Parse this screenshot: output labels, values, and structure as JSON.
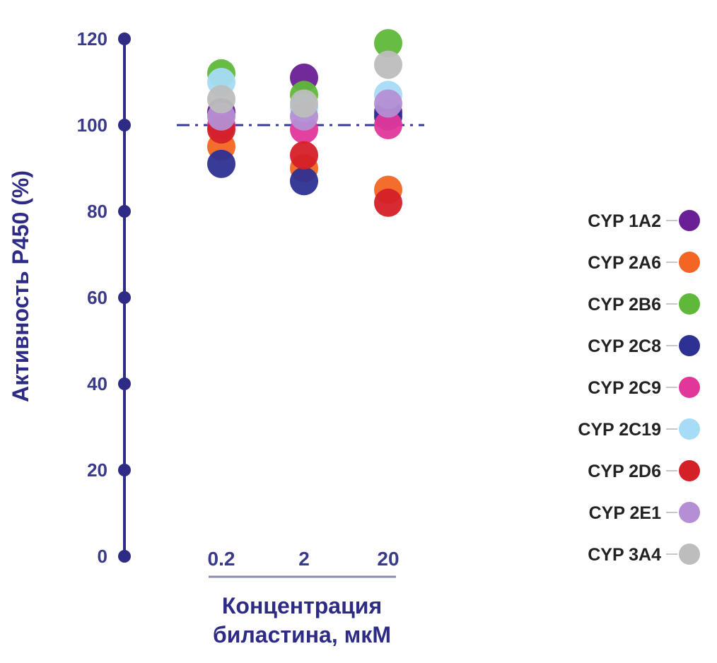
{
  "chart_data": {
    "type": "scatter",
    "ylabel": "Активность P450 (%)",
    "xlabel_lines": [
      "Концентрация",
      "биластина, мкМ"
    ],
    "ylim": [
      0,
      120
    ],
    "yticks": [
      "0",
      "20",
      "40",
      "60",
      "80",
      "100",
      "120"
    ],
    "categories": [
      "0.2",
      "2",
      "20"
    ],
    "reference_line": 100,
    "series": [
      {
        "name": "CYP 1A2",
        "color": "#6a1f96",
        "values": [
          103,
          111,
          103
        ]
      },
      {
        "name": "CYP 2A6",
        "color": "#f26522",
        "values": [
          95,
          90,
          85
        ]
      },
      {
        "name": "CYP 2B6",
        "color": "#5fb83a",
        "values": [
          112,
          107,
          119
        ]
      },
      {
        "name": "CYP 2C8",
        "color": "#2d3192",
        "values": [
          91,
          87,
          102
        ]
      },
      {
        "name": "CYP 2C9",
        "color": "#e2379a",
        "values": [
          100,
          99,
          100
        ]
      },
      {
        "name": "CYP 2C19",
        "color": "#a6dcf5",
        "values": [
          110,
          104,
          107
        ]
      },
      {
        "name": "CYP 2D6",
        "color": "#d42027",
        "values": [
          99,
          93,
          82
        ]
      },
      {
        "name": "CYP 2E1",
        "color": "#b48fd4",
        "values": [
          102,
          102,
          105
        ]
      },
      {
        "name": "CYP 3A4",
        "color": "#bdbdbd",
        "values": [
          106,
          105,
          114
        ]
      }
    ],
    "grid": false,
    "legend_position": "right"
  }
}
